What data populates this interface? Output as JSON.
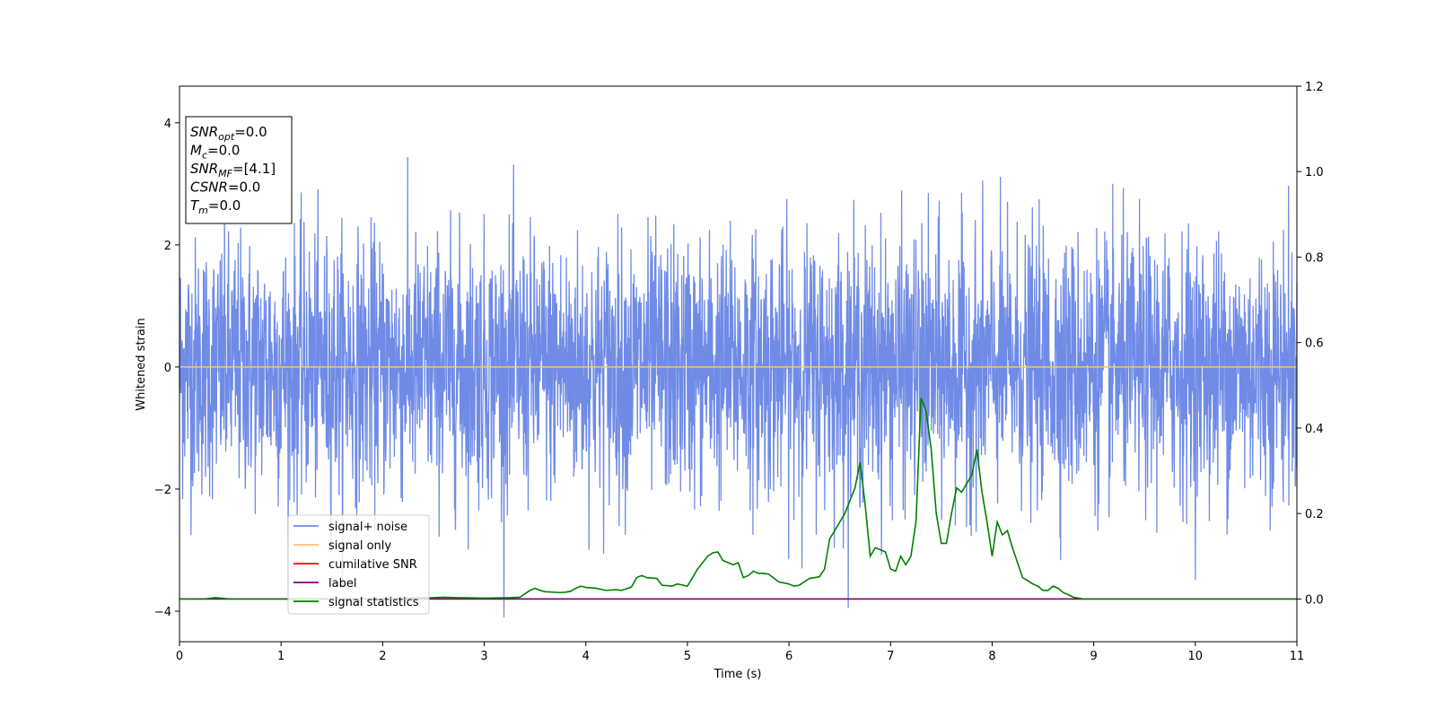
{
  "chart_data": {
    "type": "line",
    "xlabel": "Time (s)",
    "ylabel": "Whitened strain",
    "xlim": [
      0,
      11
    ],
    "ylim": [
      -4.5,
      4.6
    ],
    "y2lim": [
      -0.1,
      1.2
    ],
    "xticks": [
      0,
      1,
      2,
      3,
      4,
      5,
      6,
      7,
      8,
      9,
      10,
      11
    ],
    "yticks": [
      -4,
      -2,
      0,
      2,
      4
    ],
    "y2ticks": [
      0.0,
      0.2,
      0.4,
      0.6,
      0.8,
      1.0,
      1.2
    ],
    "xtick_labels": [
      "0",
      "1",
      "2",
      "3",
      "4",
      "5",
      "6",
      "7",
      "8",
      "9",
      "10",
      "11"
    ],
    "ytick_labels": [
      "−4",
      "−2",
      "0",
      "2",
      "4"
    ],
    "y2tick_labels": [
      "0.0",
      "0.2",
      "0.4",
      "0.6",
      "0.8",
      "1.0",
      "1.2"
    ],
    "grid": false,
    "legend_position": "lower-left",
    "series": [
      {
        "name": "signal+ noise",
        "axis": "left",
        "color": "#6F8BE6",
        "description_stats": {
          "mean": 0.0,
          "std": 1.0,
          "max": 4.17,
          "min": -4.1
        }
      },
      {
        "name": "signal only",
        "axis": "left",
        "color": "#FFBF80",
        "x": [
          0,
          11
        ],
        "y": [
          0,
          0
        ]
      },
      {
        "name": "cumilative SNR",
        "axis": "right",
        "color": "#FF0000",
        "x": [
          0,
          11
        ],
        "y": [
          0,
          0
        ]
      },
      {
        "name": "label",
        "axis": "right",
        "color": "#800080",
        "x": [
          0,
          11
        ],
        "y": [
          0,
          0
        ]
      },
      {
        "name": "signal statistics",
        "axis": "right",
        "color": "#008000",
        "x": [
          0.0,
          0.25,
          0.35,
          0.5,
          0.75,
          1.0,
          1.25,
          1.5,
          1.75,
          2.0,
          2.25,
          2.5,
          2.6,
          2.75,
          3.0,
          3.25,
          3.35,
          3.45,
          3.5,
          3.55,
          3.6,
          3.75,
          3.8,
          3.85,
          3.9,
          3.95,
          4.0,
          4.1,
          4.2,
          4.3,
          4.35,
          4.4,
          4.45,
          4.5,
          4.55,
          4.6,
          4.7,
          4.75,
          4.85,
          4.9,
          5.0,
          5.1,
          5.2,
          5.25,
          5.3,
          5.35,
          5.45,
          5.5,
          5.55,
          5.6,
          5.65,
          5.7,
          5.75,
          5.8,
          5.9,
          6.0,
          6.05,
          6.1,
          6.2,
          6.3,
          6.35,
          6.4,
          6.45,
          6.55,
          6.65,
          6.7,
          6.75,
          6.8,
          6.85,
          6.95,
          7.0,
          7.05,
          7.1,
          7.15,
          7.2,
          7.25,
          7.3,
          7.35,
          7.4,
          7.45,
          7.5,
          7.55,
          7.6,
          7.65,
          7.7,
          7.75,
          7.8,
          7.85,
          7.9,
          7.95,
          8.0,
          8.05,
          8.1,
          8.15,
          8.2,
          8.3,
          8.35,
          8.4,
          8.45,
          8.5,
          8.55,
          8.6,
          8.65,
          8.7,
          8.75,
          8.8,
          8.85,
          8.9,
          9.0,
          9.1,
          9.2,
          9.3,
          9.4,
          9.5,
          9.6,
          9.75,
          9.9,
          10.0,
          10.25,
          10.5,
          10.75,
          11.0
        ],
        "y": [
          0.0,
          0.0,
          0.003,
          0.0,
          0.0,
          0.0,
          0.0,
          0.0,
          0.0,
          0.0,
          0.002,
          0.003,
          0.004,
          0.003,
          0.002,
          0.003,
          0.004,
          0.02,
          0.025,
          0.02,
          0.017,
          0.015,
          0.016,
          0.018,
          0.025,
          0.03,
          0.027,
          0.025,
          0.02,
          0.022,
          0.02,
          0.024,
          0.028,
          0.05,
          0.055,
          0.05,
          0.048,
          0.032,
          0.03,
          0.035,
          0.03,
          0.07,
          0.1,
          0.108,
          0.11,
          0.09,
          0.08,
          0.085,
          0.05,
          0.055,
          0.065,
          0.06,
          0.06,
          0.058,
          0.04,
          0.035,
          0.03,
          0.032,
          0.048,
          0.052,
          0.07,
          0.14,
          0.16,
          0.2,
          0.26,
          0.32,
          0.22,
          0.1,
          0.12,
          0.11,
          0.07,
          0.065,
          0.1,
          0.08,
          0.1,
          0.18,
          0.47,
          0.44,
          0.35,
          0.2,
          0.13,
          0.13,
          0.2,
          0.26,
          0.25,
          0.27,
          0.29,
          0.35,
          0.25,
          0.18,
          0.1,
          0.18,
          0.15,
          0.16,
          0.12,
          0.05,
          0.043,
          0.035,
          0.03,
          0.02,
          0.02,
          0.03,
          0.025,
          0.015,
          0.01,
          0.004,
          0.002,
          0.0,
          0.0,
          0.0,
          0.0,
          0.0,
          0.0,
          0.0,
          0.0,
          0.0,
          0.0,
          0.0,
          0.0,
          0.0,
          0.0,
          0.0
        ]
      }
    ],
    "annotation": {
      "lines": [
        {
          "base": "SNR",
          "sub": "opt",
          "value": "=0.0"
        },
        {
          "base": "M",
          "sub": "c",
          "value": "=0.0"
        },
        {
          "base": "SNR",
          "sub": "MF",
          "value": "=[4.1]"
        },
        {
          "base": "CSNR",
          "sub": "",
          "value": "=0.0"
        },
        {
          "base": "T",
          "sub": "m",
          "value": "=0.0"
        }
      ]
    }
  }
}
